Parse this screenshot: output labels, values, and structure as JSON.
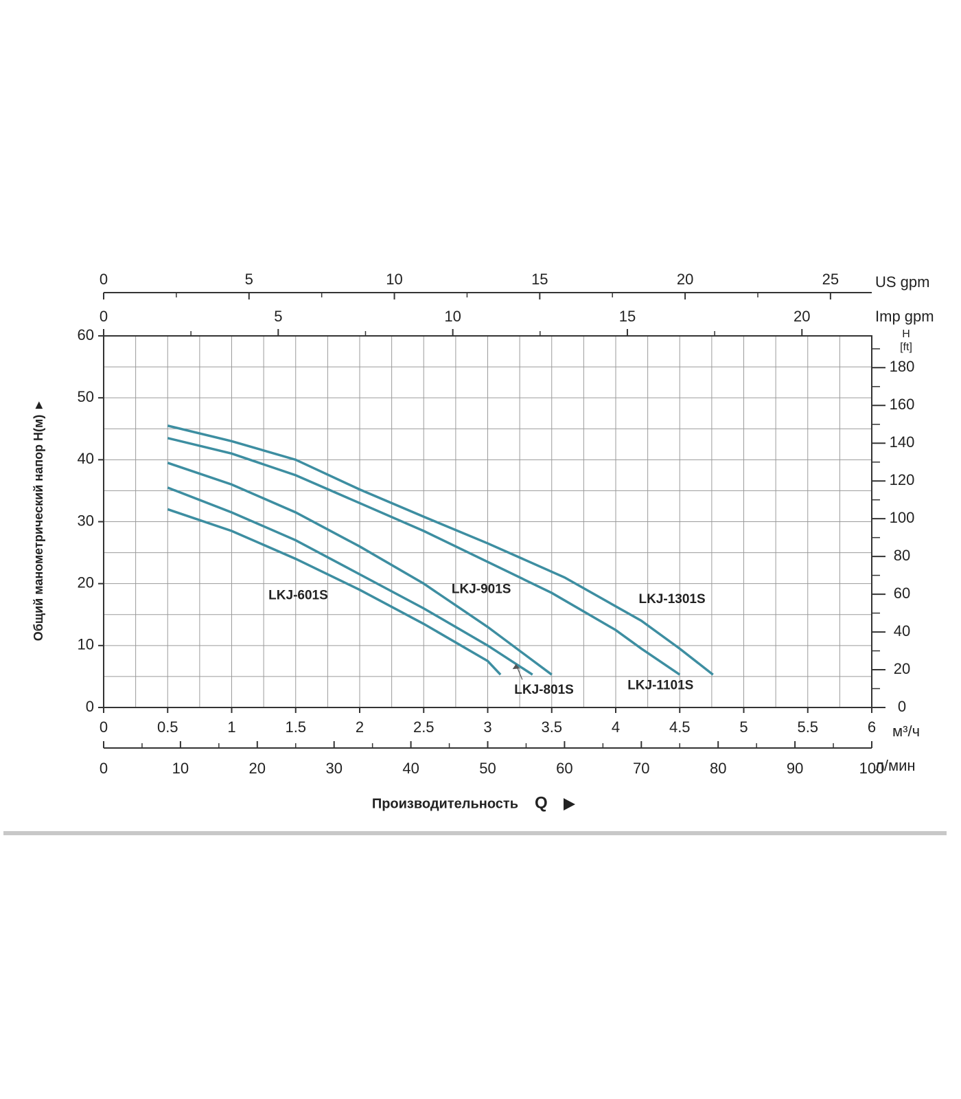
{
  "chart_data": {
    "type": "line",
    "y_label": "Общий манометрический напор H(м) ►",
    "x_label": "Производительность",
    "x_label_symbol": "Q",
    "x_unit": "м³/ч",
    "xlim": [
      0,
      6
    ],
    "xticks": [
      0,
      0.5,
      1,
      1.5,
      2,
      2.5,
      3,
      3.5,
      4,
      4.5,
      5,
      5.5,
      6
    ],
    "ylim": [
      0,
      60
    ],
    "yticks": [
      0,
      10,
      20,
      30,
      40,
      50,
      60
    ],
    "grid": true,
    "series": [
      {
        "name": "LKJ-601S",
        "color": "#3d8ea1",
        "x": [
          0.5,
          1,
          1.5,
          2,
          2.5,
          3,
          3.1
        ],
        "values": [
          32,
          28.5,
          24,
          19,
          13.5,
          7.5,
          5.3
        ]
      },
      {
        "name": "LKJ-801S",
        "color": "#3d8ea1",
        "x": [
          0.5,
          1,
          1.5,
          2,
          2.5,
          3,
          3.35
        ],
        "values": [
          35.5,
          31.5,
          27,
          21.5,
          16,
          10,
          5.3
        ]
      },
      {
        "name": "LKJ-901S",
        "color": "#3d8ea1",
        "x": [
          0.5,
          1,
          1.5,
          2,
          2.5,
          3,
          3.5
        ],
        "values": [
          39.5,
          36,
          31.5,
          26,
          20,
          13,
          5.3
        ]
      },
      {
        "name": "LKJ-1101S",
        "color": "#3d8ea1",
        "x": [
          0.5,
          1,
          1.5,
          2,
          2.5,
          3,
          3.5,
          4,
          4.2,
          4.5
        ],
        "values": [
          43.5,
          41,
          37.5,
          33,
          28.5,
          23.5,
          18.5,
          12.5,
          9.5,
          5.3
        ]
      },
      {
        "name": "LKJ-1301S",
        "color": "#3d8ea1",
        "x": [
          0.5,
          1,
          1.5,
          2,
          2.5,
          3,
          3.6,
          4.2,
          4.5,
          4.76
        ],
        "values": [
          45.5,
          43,
          40,
          35.2,
          30.8,
          26.5,
          21,
          14,
          9.5,
          5.3
        ]
      }
    ],
    "y2": {
      "label": "H",
      "unit": "[ft]",
      "lim": [
        0,
        196.85
      ],
      "ticks": [
        0,
        20,
        40,
        60,
        80,
        100,
        120,
        140,
        160,
        180
      ]
    },
    "x_top": [
      {
        "label": "US gpm",
        "lim": [
          0,
          26.42
        ],
        "ticks": [
          0,
          5,
          10,
          15,
          20,
          25
        ]
      },
      {
        "label": "Imp gpm",
        "lim": [
          0,
          22
        ],
        "ticks": [
          0,
          5,
          10,
          15,
          20
        ]
      }
    ],
    "x_bottom2": {
      "label": "л/мин",
      "lim": [
        0,
        100
      ],
      "ticks": [
        0,
        10,
        20,
        30,
        40,
        50,
        60,
        70,
        80,
        90,
        100
      ]
    }
  }
}
